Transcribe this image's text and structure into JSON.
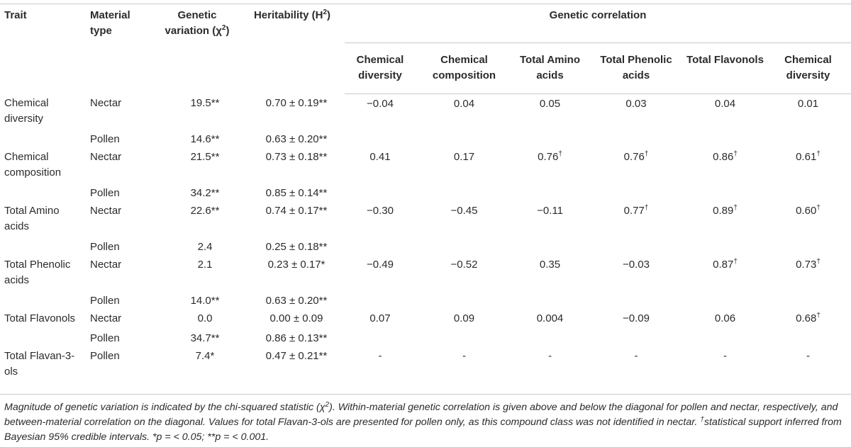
{
  "header": {
    "trait": "Trait",
    "material_type": "Material type",
    "genetic_variation_prefix": "Genetic variation (χ",
    "genetic_variation_sup": "2",
    "genetic_variation_suffix": ")",
    "heritability_prefix": "Heritability (H",
    "heritability_sup": "2",
    "heritability_suffix": ")",
    "genetic_correlation": "Genetic correlation",
    "correlation_columns": [
      "Chemical diversity",
      "Chemical composition",
      "Total Amino acids",
      "Total Phenolic acids",
      "Total Flavonols",
      "Chemical diversity"
    ]
  },
  "rows": [
    {
      "trait": "Chemical diversity",
      "material": "Nectar",
      "variation": "19.5**",
      "heritability": "0.70 ± 0.19**",
      "corr": [
        "−0.04",
        "0.04",
        "0.05",
        "0.03",
        "0.04",
        "0.01"
      ],
      "dagger": [
        false,
        false,
        false,
        false,
        false,
        false
      ]
    },
    {
      "trait": "",
      "material": "Pollen",
      "variation": "14.6**",
      "heritability": "0.63 ± 0.20**",
      "corr": [],
      "dagger": []
    },
    {
      "trait": "Chemical composition",
      "material": "Nectar",
      "variation": "21.5**",
      "heritability": "0.73 ± 0.18**",
      "corr": [
        "0.41",
        "0.17",
        "0.76",
        "0.76",
        "0.86",
        "0.61"
      ],
      "dagger": [
        false,
        false,
        true,
        true,
        true,
        true
      ]
    },
    {
      "trait": "",
      "material": "Pollen",
      "variation": "34.2**",
      "heritability": "0.85 ± 0.14**",
      "corr": [],
      "dagger": []
    },
    {
      "trait": "Total Amino acids",
      "material": "Nectar",
      "variation": "22.6**",
      "heritability": "0.74 ± 0.17**",
      "corr": [
        "−0.30",
        "−0.45",
        "−0.11",
        "0.77",
        "0.89",
        "0.60"
      ],
      "dagger": [
        false,
        false,
        false,
        true,
        true,
        true
      ]
    },
    {
      "trait": "",
      "material": "Pollen",
      "variation": "2.4",
      "heritability": "0.25 ± 0.18**",
      "corr": [],
      "dagger": []
    },
    {
      "trait": "Total Phenolic acids",
      "material": "Nectar",
      "variation": "2.1",
      "heritability": "0.23 ± 0.17*",
      "corr": [
        "−0.49",
        "−0.52",
        "0.35",
        "−0.03",
        "0.87",
        "0.73"
      ],
      "dagger": [
        false,
        false,
        false,
        false,
        true,
        true
      ]
    },
    {
      "trait": "",
      "material": "Pollen",
      "variation": "14.0**",
      "heritability": "0.63 ± 0.20**",
      "corr": [],
      "dagger": []
    },
    {
      "trait": "Total Flavonols",
      "material": "Nectar",
      "variation": "0.0",
      "heritability": "0.00 ± 0.09",
      "corr": [
        "0.07",
        "0.09",
        "0.004",
        "−0.09",
        "0.06",
        "0.68"
      ],
      "dagger": [
        false,
        false,
        false,
        false,
        false,
        true
      ]
    },
    {
      "trait": "",
      "material": "Pollen",
      "variation": "34.7**",
      "heritability": "0.86 ± 0.13**",
      "corr": [],
      "dagger": []
    },
    {
      "trait": "Total Flavan-3-ols",
      "material": "Pollen",
      "variation": "7.4*",
      "heritability": "0.47 ± 0.21**",
      "corr": [
        "-",
        "-",
        "-",
        "-",
        "-",
        "-"
      ],
      "dagger": [
        false,
        false,
        false,
        false,
        false,
        false
      ]
    }
  ],
  "dagger_symbol": "†",
  "footnote": {
    "part1": "Magnitude of genetic variation is indicated by the chi-squared statistic (χ",
    "part1_sup": "2",
    "part2": "). Within-material genetic correlation is given above and below the diagonal for pollen and nectar, respectively, and between-material correlation on the diagonal. Values for total Flavan-3-ols are presented for pollen only, as this compound class was not identified in nectar. ",
    "dagger_sup": "†",
    "part3": "statistical support inferred from Bayesian 95% credible intervals. *p = < 0.05; **p = < 0.001."
  }
}
